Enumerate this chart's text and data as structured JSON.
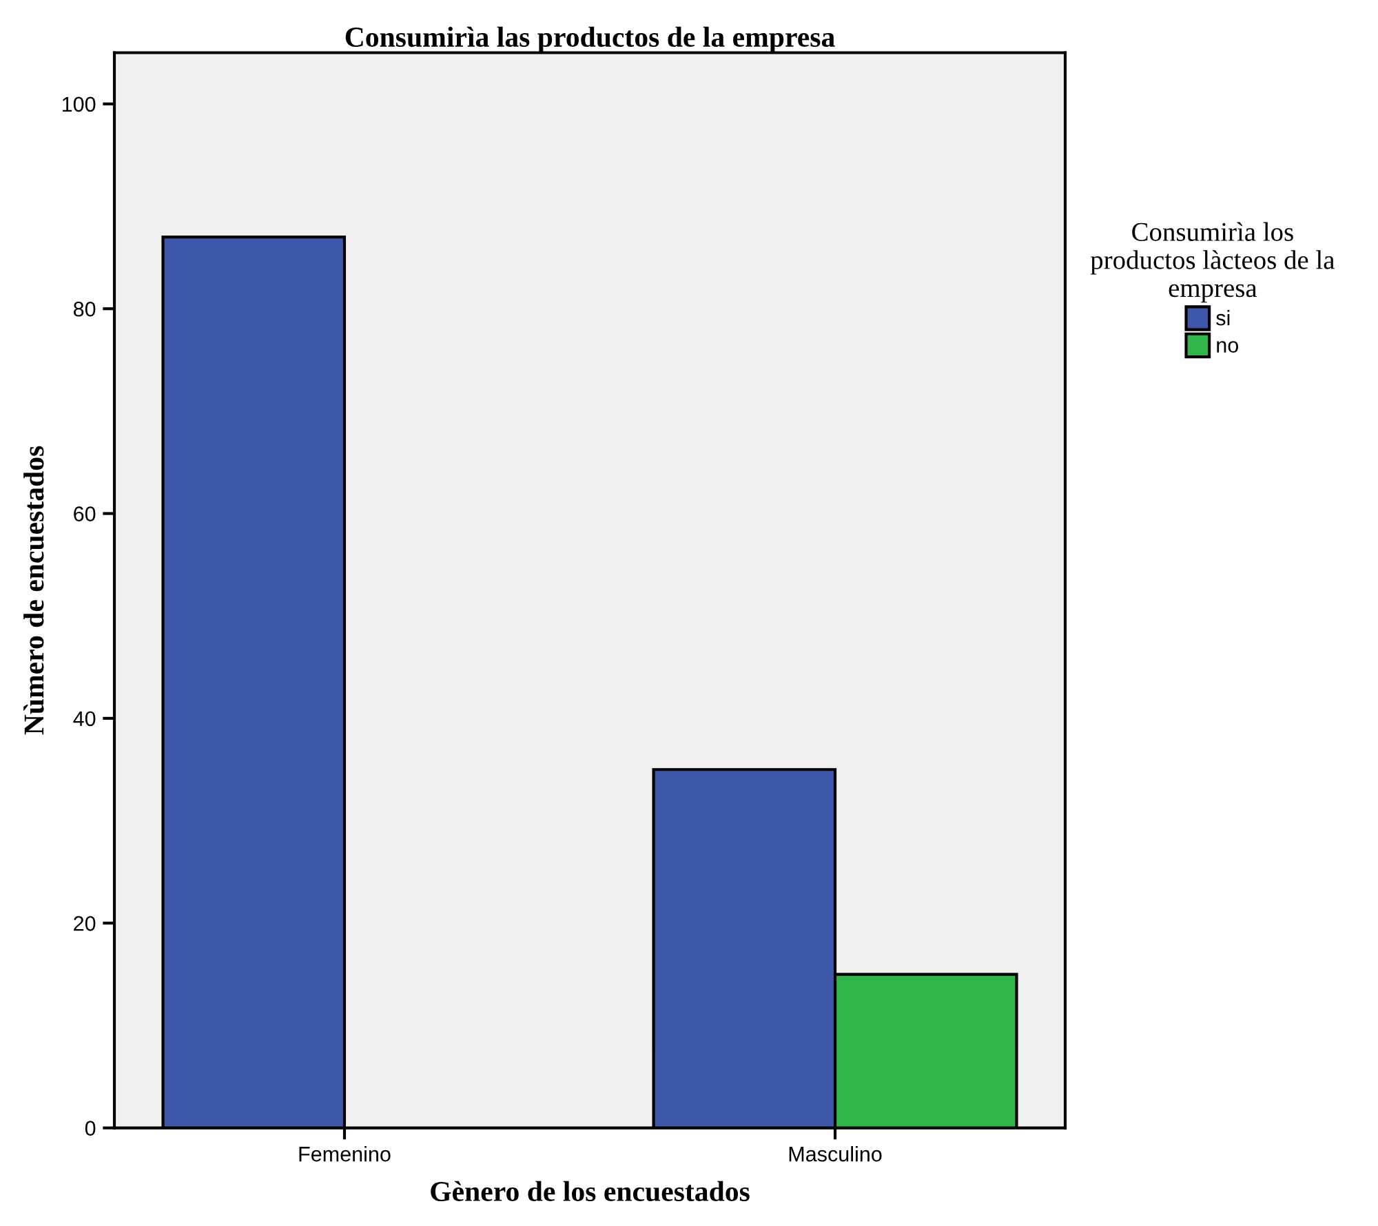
{
  "chart_data": {
    "type": "bar",
    "title": "Consumirìa las productos de la empresa",
    "xlabel": "Gènero de los encuestados",
    "ylabel": "Nùmero de encuestados",
    "legend_title": "Consumirìa los\nproductos làcteos de la\nempresa",
    "categories": [
      "Femenino",
      "Masculino"
    ],
    "series": [
      {
        "name": "si",
        "color": "#3e57a9",
        "values": [
          87,
          35
        ]
      },
      {
        "name": "no",
        "color": "#2fb54a",
        "values": [
          null,
          15
        ]
      }
    ],
    "ylim": [
      0,
      105
    ],
    "yticks": [
      0,
      20,
      40,
      60,
      80,
      100
    ],
    "grid": false,
    "legend": "right"
  }
}
